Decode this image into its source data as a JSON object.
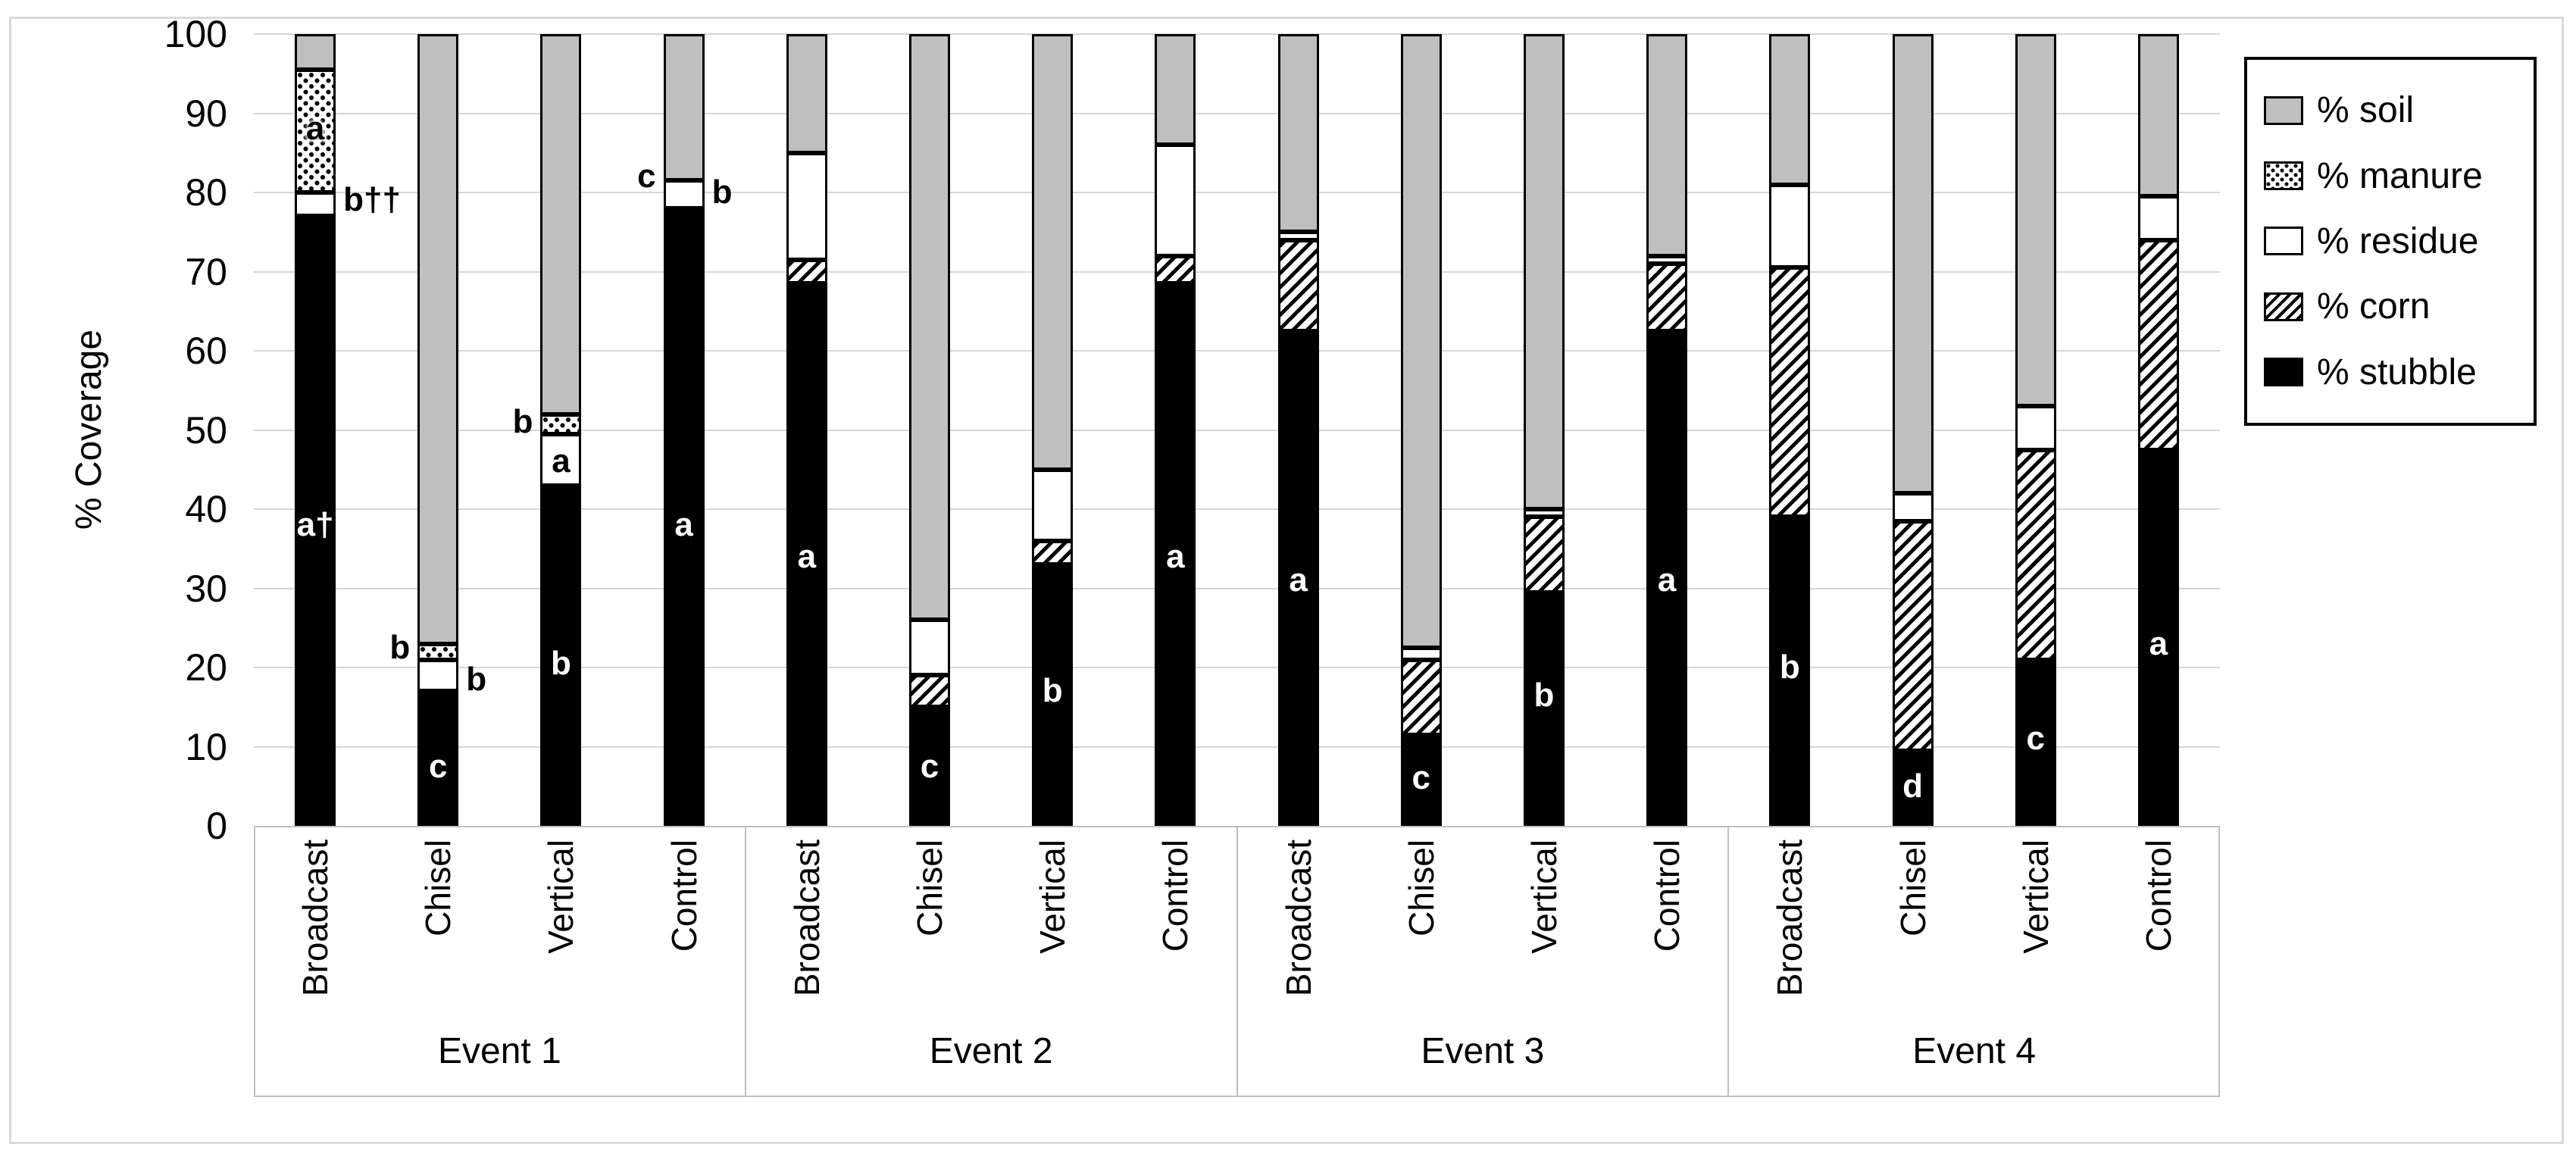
{
  "y_axis": {
    "title": "% Coverage",
    "ticks": [
      "100",
      "90",
      "80",
      "70",
      "60",
      "50",
      "40",
      "30",
      "20",
      "10",
      "0"
    ],
    "min": 0,
    "max": 100
  },
  "legend": {
    "items": [
      {
        "key": "soil",
        "label": "% soil"
      },
      {
        "key": "manure",
        "label": "% manure"
      },
      {
        "key": "residue",
        "label": "% residue"
      },
      {
        "key": "corn",
        "label": "% corn"
      },
      {
        "key": "stubble",
        "label": "% stubble"
      }
    ]
  },
  "colors": {
    "soil": "#bfbfbf",
    "stubble": "#000000",
    "residue": "#ffffff",
    "grid": "#d6d6d6",
    "axis_box": "#bfbfbf",
    "frame": "#d9d9d9"
  },
  "chart_data": {
    "type": "bar",
    "stacked": true,
    "title": "",
    "xlabel": "",
    "ylabel": "% Coverage",
    "ylim": [
      0,
      100
    ],
    "grid": true,
    "legend_position": "top-right",
    "series_bottom_to_top": [
      "% stubble",
      "% corn",
      "% residue",
      "% manure",
      "% soil"
    ],
    "groups": [
      {
        "label": "Event 1",
        "bars": [
          {
            "category": "Broadcast",
            "stubble": 77,
            "corn": 0,
            "residue": 3,
            "manure": 15.5,
            "soil": 4.5,
            "annotations": [
              {
                "text": "a",
                "at": 88,
                "pos": "inside",
                "color": "#000000"
              },
              {
                "text": "b††",
                "at": 79,
                "pos": "right",
                "color": "#000000"
              },
              {
                "text": "a†",
                "at": 38,
                "pos": "inside",
                "color": "#ffffff"
              }
            ]
          },
          {
            "category": "Chisel",
            "stubble": 17,
            "corn": 0,
            "residue": 4,
            "manure": 2,
            "soil": 77,
            "annotations": [
              {
                "text": "b",
                "at": 22.5,
                "pos": "left",
                "color": "#000000"
              },
              {
                "text": "b",
                "at": 18.5,
                "pos": "right",
                "color": "#000000"
              },
              {
                "text": "c",
                "at": 7.5,
                "pos": "inside",
                "color": "#ffffff"
              }
            ]
          },
          {
            "category": "Vertical",
            "stubble": 43,
            "corn": 0,
            "residue": 6.5,
            "manure": 2.5,
            "soil": 48,
            "annotations": [
              {
                "text": "b",
                "at": 51,
                "pos": "left",
                "color": "#000000"
              },
              {
                "text": "a",
                "at": 46,
                "pos": "inside",
                "color": "#000000"
              },
              {
                "text": "b",
                "at": 20.5,
                "pos": "inside",
                "color": "#ffffff"
              }
            ]
          },
          {
            "category": "Control",
            "stubble": 78,
            "corn": 0,
            "residue": 3.5,
            "manure": 0,
            "soil": 18.5,
            "annotations": [
              {
                "text": "c",
                "at": 82,
                "pos": "left",
                "color": "#000000"
              },
              {
                "text": "b",
                "at": 80,
                "pos": "right",
                "color": "#000000"
              },
              {
                "text": "a",
                "at": 38,
                "pos": "inside",
                "color": "#ffffff"
              }
            ]
          }
        ]
      },
      {
        "label": "Event 2",
        "bars": [
          {
            "category": "Broadcast",
            "stubble": 68.5,
            "corn": 3,
            "residue": 13.5,
            "manure": 0,
            "soil": 15,
            "annotations": [
              {
                "text": "a",
                "at": 34,
                "pos": "inside",
                "color": "#ffffff"
              }
            ]
          },
          {
            "category": "Chisel",
            "stubble": 15,
            "corn": 4,
            "residue": 7,
            "manure": 0,
            "soil": 74,
            "annotations": [
              {
                "text": "c",
                "at": 7.5,
                "pos": "inside",
                "color": "#ffffff"
              }
            ]
          },
          {
            "category": "Vertical",
            "stubble": 33,
            "corn": 3,
            "residue": 9,
            "manure": 0,
            "soil": 55,
            "annotations": [
              {
                "text": "b",
                "at": 17,
                "pos": "inside",
                "color": "#ffffff"
              }
            ]
          },
          {
            "category": "Control",
            "stubble": 68.5,
            "corn": 3.5,
            "residue": 14,
            "manure": 0,
            "soil": 14,
            "annotations": [
              {
                "text": "a",
                "at": 34,
                "pos": "inside",
                "color": "#ffffff"
              }
            ]
          }
        ]
      },
      {
        "label": "Event 3",
        "bars": [
          {
            "category": "Broadcast",
            "stubble": 62.5,
            "corn": 11.5,
            "residue": 1,
            "manure": 0,
            "soil": 25,
            "annotations": [
              {
                "text": "a",
                "at": 31,
                "pos": "inside",
                "color": "#ffffff"
              }
            ]
          },
          {
            "category": "Chisel",
            "stubble": 11.5,
            "corn": 9.5,
            "residue": 1.5,
            "manure": 0,
            "soil": 77.5,
            "annotations": [
              {
                "text": "c",
                "at": 6,
                "pos": "inside",
                "color": "#ffffff"
              }
            ]
          },
          {
            "category": "Vertical",
            "stubble": 29.5,
            "corn": 9.5,
            "residue": 1,
            "manure": 0,
            "soil": 60,
            "annotations": [
              {
                "text": "b",
                "at": 16.5,
                "pos": "inside",
                "color": "#ffffff"
              }
            ]
          },
          {
            "category": "Control",
            "stubble": 62.5,
            "corn": 8.5,
            "residue": 1,
            "manure": 0,
            "soil": 28,
            "annotations": [
              {
                "text": "a",
                "at": 31,
                "pos": "inside",
                "color": "#ffffff"
              }
            ]
          }
        ]
      },
      {
        "label": "Event 4",
        "bars": [
          {
            "category": "Broadcast",
            "stubble": 39,
            "corn": 31.5,
            "residue": 10.5,
            "manure": 0,
            "soil": 19,
            "annotations": [
              {
                "text": "b",
                "at": 20,
                "pos": "inside",
                "color": "#ffffff"
              }
            ]
          },
          {
            "category": "Chisel",
            "stubble": 9.5,
            "corn": 29,
            "residue": 3.5,
            "manure": 0,
            "soil": 58,
            "annotations": [
              {
                "text": "d",
                "at": 5,
                "pos": "inside",
                "color": "#ffffff"
              }
            ]
          },
          {
            "category": "Vertical",
            "stubble": 21,
            "corn": 26.5,
            "residue": 5.5,
            "manure": 0,
            "soil": 47,
            "annotations": [
              {
                "text": "c",
                "at": 11,
                "pos": "inside",
                "color": "#ffffff"
              }
            ]
          },
          {
            "category": "Control",
            "stubble": 47.5,
            "corn": 26.5,
            "residue": 5.5,
            "manure": 0,
            "soil": 20.5,
            "annotations": [
              {
                "text": "a",
                "at": 23,
                "pos": "inside",
                "color": "#ffffff"
              }
            ]
          }
        ]
      }
    ]
  }
}
